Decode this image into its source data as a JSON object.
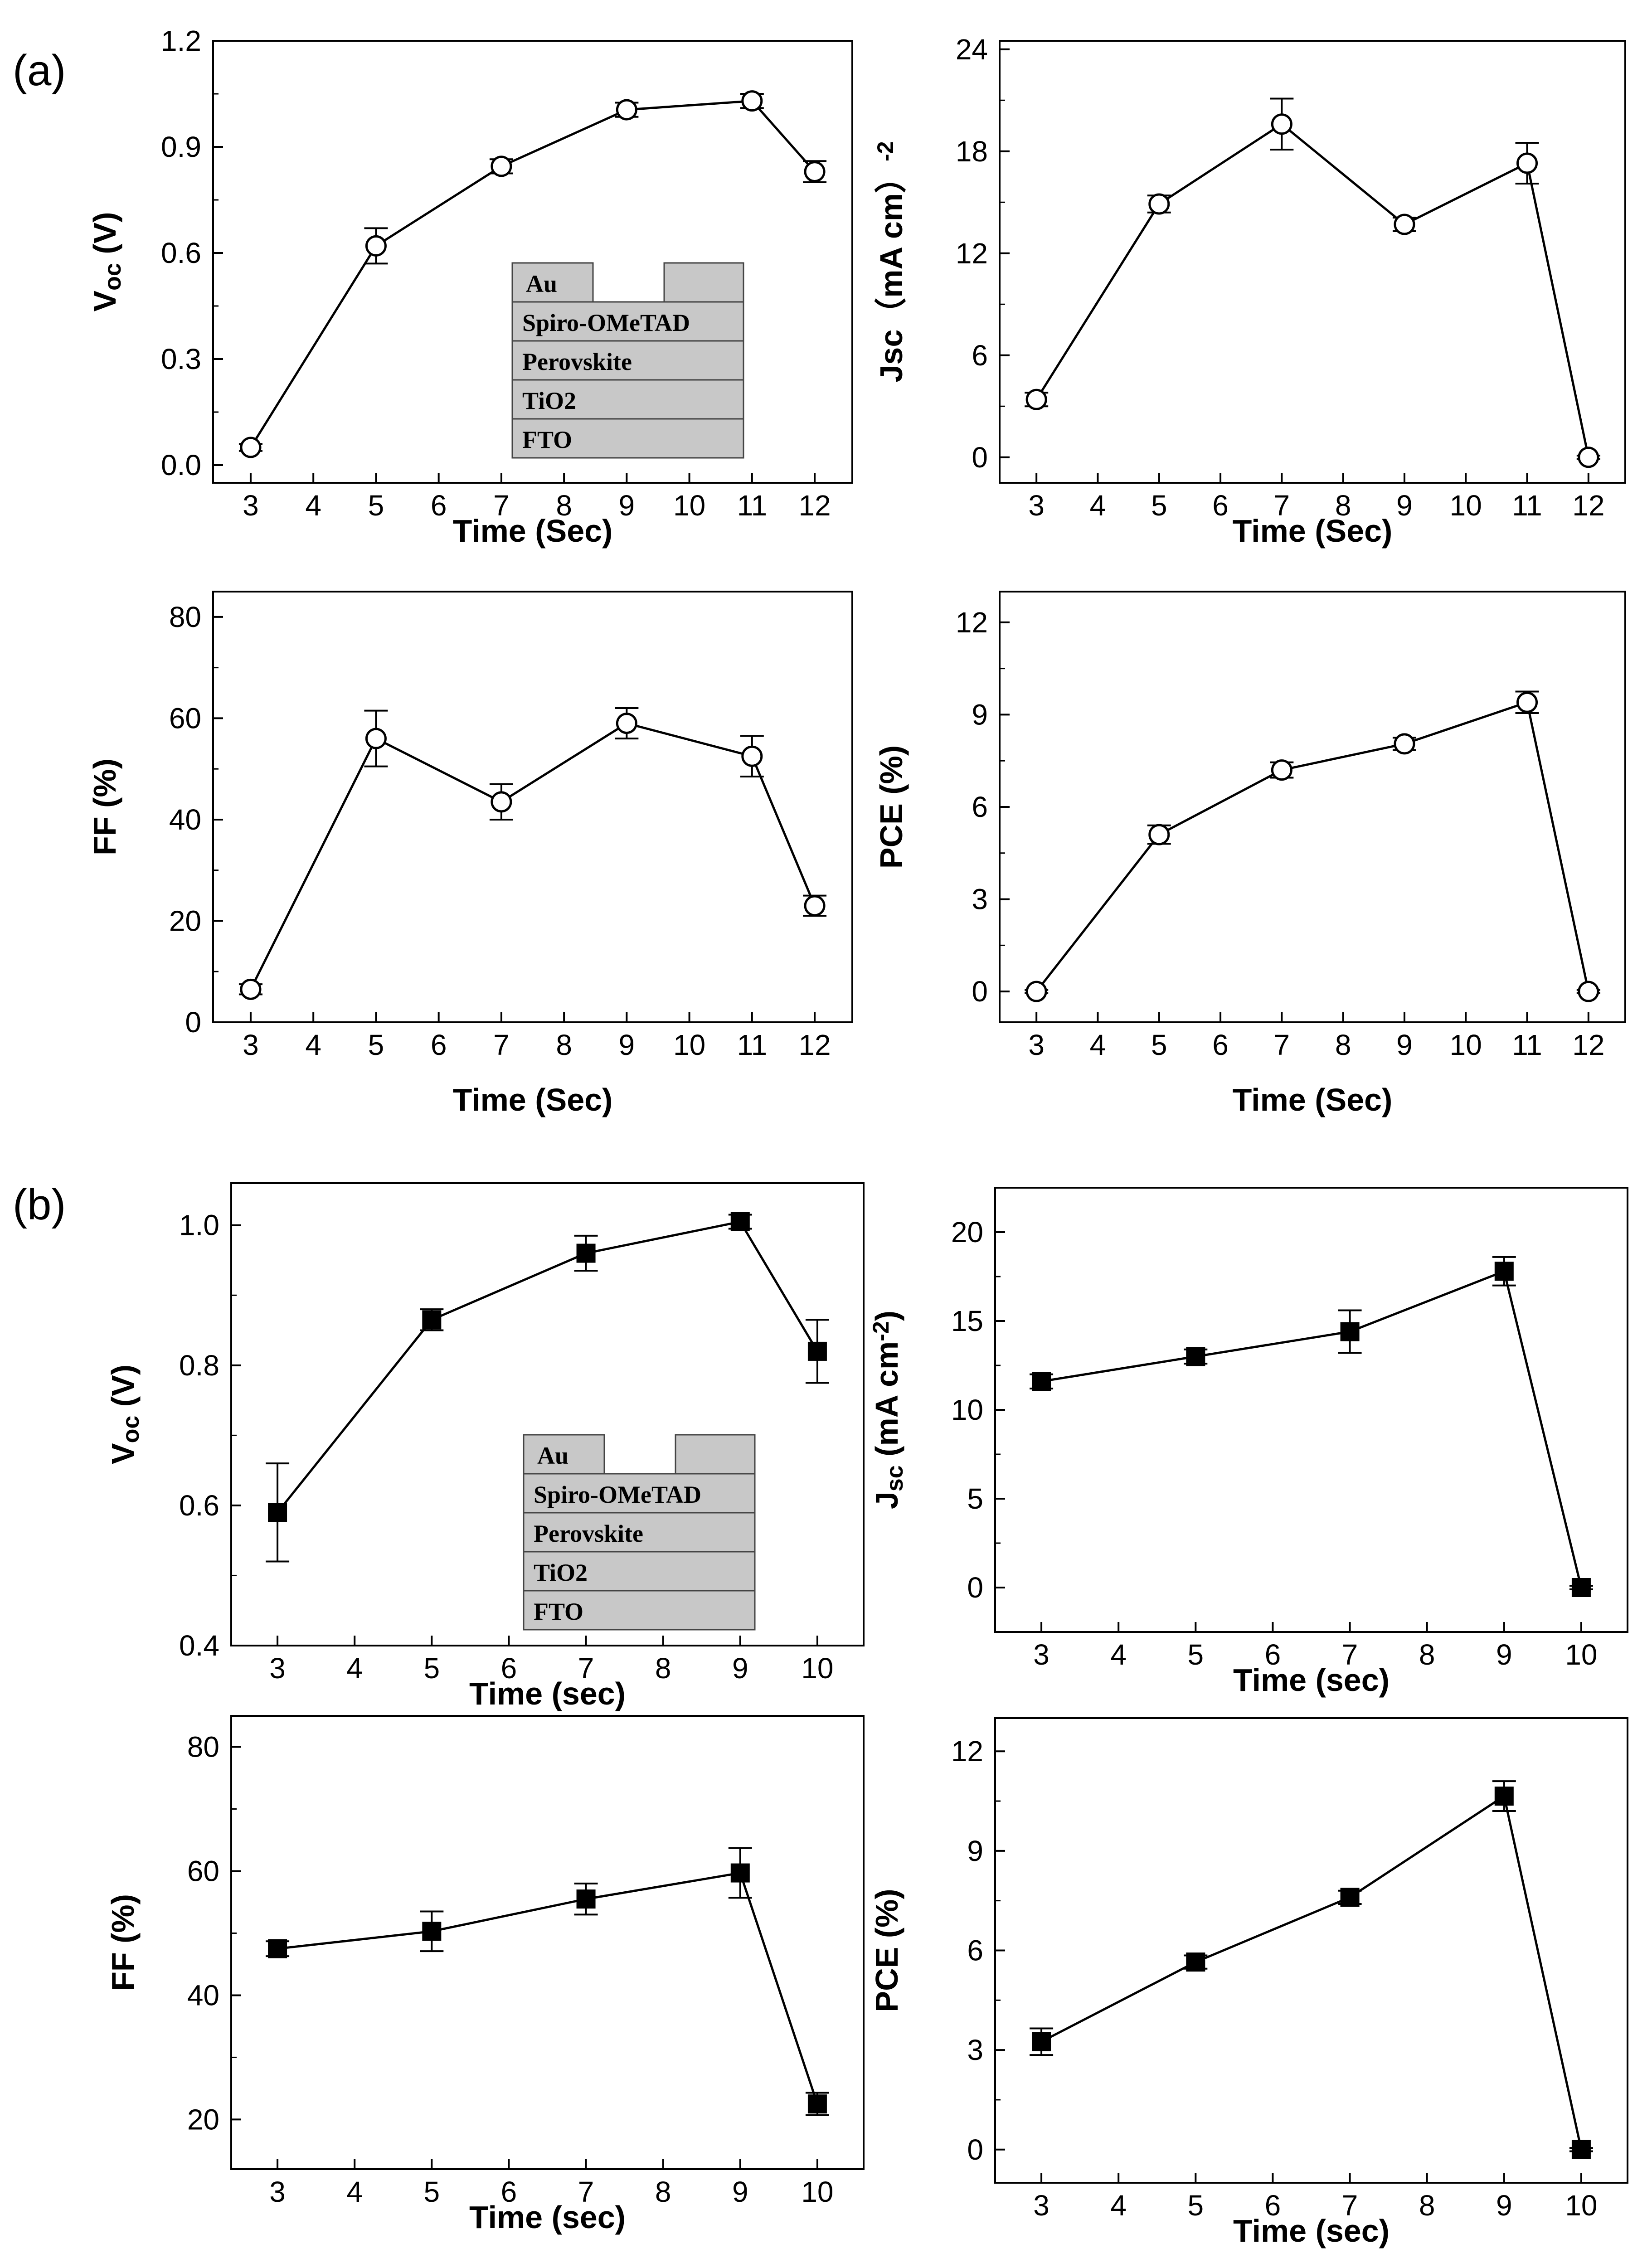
{
  "figure": {
    "labels": [
      "(a)",
      "(b)"
    ]
  },
  "layer_stack": {
    "layers": [
      "Au",
      "Spiro-OMeTAD",
      "Perovskite",
      "TiO2",
      "FTO"
    ]
  },
  "chart_data": [
    {
      "type": "line",
      "panel": "(a)",
      "ylabel": "Voc (V)",
      "ylabel_parts": {
        "main": "V",
        "sub": "oc",
        "rest": " (V)"
      },
      "xlabel": "Time (Sec)",
      "x": [
        3,
        5,
        7,
        9,
        11,
        12
      ],
      "categories": [
        "3",
        "5",
        "7",
        "9",
        "11",
        "12"
      ],
      "values": [
        0.05,
        0.62,
        0.845,
        1.005,
        1.03,
        0.83
      ],
      "errors": [
        0.01,
        0.05,
        0.02,
        0.02,
        0.02,
        0.03
      ],
      "xticks": [
        3,
        4,
        5,
        6,
        7,
        8,
        9,
        10,
        11,
        12
      ],
      "xlabels": [
        "3",
        "4",
        "5",
        "6",
        "7",
        "8",
        "9",
        "10",
        "11",
        "12"
      ],
      "yticks": [
        0.0,
        0.3,
        0.6,
        0.9,
        1.2
      ],
      "ylabels": [
        "0.0",
        "0.3",
        "0.6",
        "0.9",
        "1.2"
      ],
      "ylim": [
        -0.05,
        1.2
      ],
      "marker": "open-circle",
      "inset": true
    },
    {
      "type": "line",
      "panel": "(a)",
      "ylabel": "Jsc（mA cm-2）",
      "ylabel_parts": {
        "main": "Jsc（mA cm",
        "sup": "-2",
        "rest": "）"
      },
      "xlabel": "Time (Sec)",
      "x": [
        3,
        5,
        7,
        9,
        11,
        12
      ],
      "categories": [
        "3",
        "5",
        "7",
        "9",
        "11",
        "12"
      ],
      "values": [
        3.4,
        14.9,
        19.6,
        13.7,
        17.3,
        0.0
      ],
      "errors": [
        0.4,
        0.5,
        1.5,
        0.4,
        1.2,
        0.1
      ],
      "xticks": [
        3,
        4,
        5,
        6,
        7,
        8,
        9,
        10,
        11,
        12
      ],
      "xlabels": [
        "3",
        "4",
        "5",
        "6",
        "7",
        "8",
        "9",
        "10",
        "11",
        "12"
      ],
      "yticks": [
        0,
        6,
        12,
        18,
        24
      ],
      "ylabels": [
        "0",
        "6",
        "12",
        "18",
        "24"
      ],
      "ylim": [
        -1.5,
        24.5
      ],
      "marker": "open-circle",
      "inset": false
    },
    {
      "type": "line",
      "panel": "(a)",
      "ylabel": "FF (%)",
      "ylabel_parts": {
        "main": "FF (%)"
      },
      "xlabel": "Time (Sec)",
      "x": [
        3,
        5,
        7,
        9,
        11,
        12
      ],
      "categories": [
        "3",
        "5",
        "7",
        "9",
        "11",
        "12"
      ],
      "values": [
        6.5,
        56,
        43.5,
        59,
        52.5,
        23
      ],
      "errors": [
        1,
        5.5,
        3.5,
        3,
        4,
        2
      ],
      "xticks": [
        3,
        4,
        5,
        6,
        7,
        8,
        9,
        10,
        11,
        12
      ],
      "xlabels": [
        "3",
        "4",
        "5",
        "6",
        "7",
        "8",
        "9",
        "10",
        "11",
        "12"
      ],
      "yticks": [
        0,
        20,
        40,
        60,
        80
      ],
      "ylabels": [
        "0",
        "20",
        "40",
        "60",
        "80"
      ],
      "ylim": [
        0,
        85
      ],
      "marker": "open-circle",
      "inset": false
    },
    {
      "type": "line",
      "panel": "(a)",
      "ylabel": "PCE (%)",
      "ylabel_parts": {
        "main": "PCE (%)"
      },
      "xlabel": "Time (Sec)",
      "x": [
        3,
        5,
        7,
        9,
        11,
        12
      ],
      "categories": [
        "3",
        "5",
        "7",
        "9",
        "11",
        "12"
      ],
      "values": [
        0.0,
        5.1,
        7.2,
        8.05,
        9.4,
        0.0
      ],
      "errors": [
        0.05,
        0.3,
        0.25,
        0.2,
        0.35,
        0.05
      ],
      "xticks": [
        3,
        4,
        5,
        6,
        7,
        8,
        9,
        10,
        11,
        12
      ],
      "xlabels": [
        "3",
        "4",
        "5",
        "6",
        "7",
        "8",
        "9",
        "10",
        "11",
        "12"
      ],
      "yticks": [
        0,
        3,
        6,
        9,
        12
      ],
      "ylabels": [
        "0",
        "3",
        "6",
        "9",
        "12"
      ],
      "ylim": [
        -1,
        13
      ],
      "marker": "open-circle",
      "inset": false
    },
    {
      "type": "line",
      "panel": "(b)",
      "ylabel": "Voc (V)",
      "ylabel_parts": {
        "main": "V",
        "sub": "oc",
        "rest": " (V)"
      },
      "xlabel": "Time (sec)",
      "x": [
        3,
        5,
        7,
        9,
        10
      ],
      "categories": [
        "3",
        "5",
        "7",
        "9",
        "10"
      ],
      "values": [
        0.59,
        0.865,
        0.96,
        1.005,
        0.82
      ],
      "errors": [
        0.07,
        0.015,
        0.025,
        0.01,
        0.045
      ],
      "xticks": [
        3,
        4,
        5,
        6,
        7,
        8,
        9,
        10
      ],
      "xlabels": [
        "3",
        "4",
        "5",
        "6",
        "7",
        "8",
        "9",
        "10"
      ],
      "yticks": [
        0.4,
        0.6,
        0.8,
        1.0
      ],
      "ylabels": [
        "0.4",
        "0.6",
        "0.8",
        "1.0"
      ],
      "ylim": [
        0.4,
        1.06
      ],
      "marker": "filled-square",
      "inset": true
    },
    {
      "type": "line",
      "panel": "(b)",
      "ylabel": "Jsc (mA cm-2)",
      "ylabel_parts": {
        "main": "J",
        "sub": "sc",
        "rest": " (mA cm",
        "sup": "-2",
        "tail": ")"
      },
      "xlabel": "Time (sec)",
      "x": [
        3,
        5,
        7,
        9,
        10
      ],
      "categories": [
        "3",
        "5",
        "7",
        "9",
        "10"
      ],
      "values": [
        11.6,
        13.0,
        14.4,
        17.8,
        0.0
      ],
      "errors": [
        0.4,
        0.4,
        1.2,
        0.8,
        0.1
      ],
      "xticks": [
        3,
        4,
        5,
        6,
        7,
        8,
        9,
        10
      ],
      "xlabels": [
        "3",
        "4",
        "5",
        "6",
        "7",
        "8",
        "9",
        "10"
      ],
      "yticks": [
        0,
        5,
        10,
        15,
        20
      ],
      "ylabels": [
        "0",
        "5",
        "10",
        "15",
        "20"
      ],
      "ylim": [
        -2.5,
        22.5
      ],
      "marker": "filled-square",
      "inset": false
    },
    {
      "type": "line",
      "panel": "(b)",
      "ylabel": "FF (%)",
      "ylabel_parts": {
        "main": "FF (%)"
      },
      "xlabel": "Time (sec)",
      "x": [
        3,
        5,
        7,
        9,
        10
      ],
      "categories": [
        "3",
        "5",
        "7",
        "9",
        "10"
      ],
      "values": [
        47.5,
        50.3,
        55.5,
        59.7,
        22.5
      ],
      "errors": [
        1.2,
        3.2,
        2.5,
        4.0,
        1.8
      ],
      "xticks": [
        3,
        4,
        5,
        6,
        7,
        8,
        9,
        10
      ],
      "xlabels": [
        "3",
        "4",
        "5",
        "6",
        "7",
        "8",
        "9",
        "10"
      ],
      "yticks": [
        20,
        40,
        60,
        80
      ],
      "ylabels": [
        "20",
        "40",
        "60",
        "80"
      ],
      "ylim": [
        12,
        85
      ],
      "marker": "filled-square",
      "inset": false
    },
    {
      "type": "line",
      "panel": "(b)",
      "ylabel": "PCE (%)",
      "ylabel_parts": {
        "main": "PCE (%)"
      },
      "xlabel": "Time (sec)",
      "x": [
        3,
        5,
        7,
        9,
        10
      ],
      "categories": [
        "3",
        "5",
        "7",
        "9",
        "10"
      ],
      "values": [
        3.25,
        5.65,
        7.6,
        10.65,
        0.0
      ],
      "errors": [
        0.4,
        0.2,
        0.2,
        0.45,
        0.05
      ],
      "xticks": [
        3,
        4,
        5,
        6,
        7,
        8,
        9,
        10
      ],
      "xlabels": [
        "3",
        "4",
        "5",
        "6",
        "7",
        "8",
        "9",
        "10"
      ],
      "yticks": [
        0,
        3,
        6,
        9,
        12
      ],
      "ylabels": [
        "0",
        "3",
        "6",
        "9",
        "12"
      ],
      "ylim": [
        -1,
        13
      ],
      "marker": "filled-square",
      "inset": false
    }
  ]
}
